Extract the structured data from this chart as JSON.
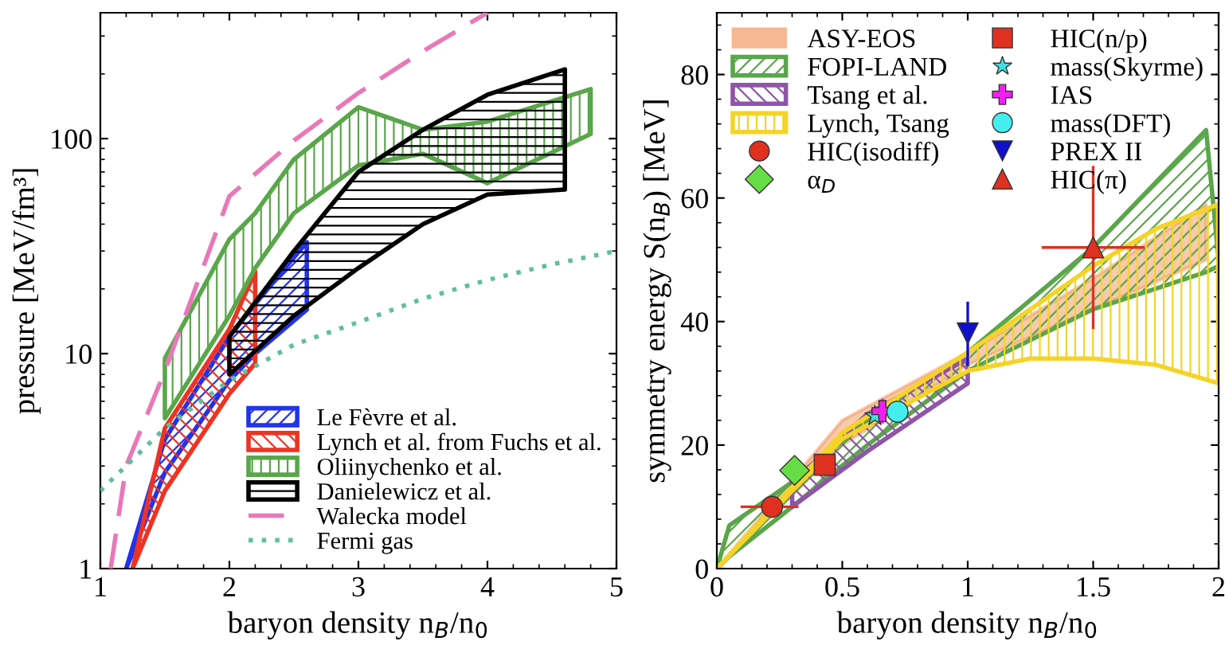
{
  "chart_data": [
    {
      "type": "area",
      "xlabel": "baryon density n$_{B}$/n$_{0}$",
      "ylabel": "pressure [MeV/fm³]",
      "log": "y",
      "xlim": [
        1,
        5
      ],
      "ylim": [
        1,
        385
      ],
      "xticks": [
        1,
        2,
        3,
        4,
        5
      ],
      "yticks": [
        1,
        10,
        100
      ],
      "grid": false,
      "legend": "bottom right",
      "series": [
        {
          "name": "Le Fèvre et al.",
          "color": "#2233ee",
          "x": [
            1.2,
            1.5,
            2,
            2.2,
            2.6
          ],
          "values": [
            null,
            null,
            null,
            null,
            null
          ],
          "upper": [
            1,
            4,
            12,
            17,
            33
          ],
          "lower": [
            1,
            2.8,
            7.5,
            10,
            16
          ]
        },
        {
          "name": "Lynch et al. from Fuchs et al.",
          "color": "#ee3322",
          "x": [
            1.25,
            1.5,
            2,
            2.2
          ],
          "values": [
            null,
            null,
            null,
            null
          ],
          "upper": [
            1,
            4.5,
            13,
            24
          ],
          "lower": [
            1,
            2.3,
            6.5,
            9
          ]
        },
        {
          "name": "Oliinychenko et al.",
          "color": "#5aa64a",
          "x": [
            1.5,
            2,
            2.2,
            2.5,
            3,
            3.5,
            4,
            4.8
          ],
          "values": [
            null,
            null,
            null,
            null,
            null,
            null,
            null,
            null
          ],
          "upper": [
            9.5,
            34,
            45,
            80,
            140,
            110,
            120,
            170
          ],
          "lower": [
            5,
            15,
            25,
            45,
            75,
            85,
            62,
            105
          ]
        },
        {
          "name": "Danielewicz et al.",
          "color": "#000000",
          "x": [
            2,
            2.5,
            3,
            3.5,
            4,
            4.6
          ],
          "values": [
            null,
            null,
            null,
            null,
            null,
            null
          ],
          "upper": [
            12,
            30,
            70,
            110,
            160,
            210
          ],
          "lower": [
            8,
            15,
            25,
            40,
            55,
            58
          ]
        },
        {
          "name": "Walecka model",
          "type": "line",
          "line_style": "dashed",
          "color": "#e878b8",
          "x": [
            1.08,
            1.2,
            1.5,
            2,
            2.5,
            3,
            3.5,
            4
          ],
          "values": [
            1,
            3,
            8.3,
            54,
            98,
            163,
            255,
            385
          ]
        },
        {
          "name": "Fermi gas",
          "type": "line",
          "line_style": "dotted",
          "color": "#5fbfa0",
          "x": [
            1,
            1.5,
            2,
            2.5,
            3,
            3.5,
            4,
            4.5,
            5
          ],
          "values": [
            2.3,
            4.5,
            7.5,
            11,
            14,
            18,
            22,
            26,
            30
          ]
        }
      ]
    },
    {
      "type": "area",
      "xlabel": "baryon density n$_{B}$/n$_{0}$",
      "ylabel": "symmetry energy S(n$_{B}$) [MeV]",
      "xlim": [
        0,
        2
      ],
      "ylim": [
        0,
        90
      ],
      "xticks": [
        0,
        {
          "value": 0.5,
          "label": "0.5"
        },
        1,
        {
          "value": 1.5,
          "label": "1.5"
        },
        2
      ],
      "yticks": [
        0,
        20,
        40,
        60,
        80
      ],
      "grid": false,
      "legend": "top left",
      "series": [
        {
          "name": "ASY-EOS",
          "color": "#f08a4b",
          "x": [
            0,
            0.5,
            1,
            1.5,
            1.95
          ],
          "values": [
            null,
            null,
            null,
            null,
            null
          ],
          "upper": [
            0,
            24,
            35,
            47,
            59
          ],
          "lower": [
            0,
            20,
            33,
            42,
            50
          ]
        },
        {
          "name": "FOPI-LAND",
          "color": "#5aa64a",
          "x": [
            0,
            0.05,
            0.3,
            0.6,
            1,
            1.5,
            1.95,
            2
          ],
          "values": [
            null,
            null,
            null,
            null,
            null,
            null,
            null,
            null
          ],
          "upper": [
            0,
            7,
            14,
            24,
            35,
            52,
            71,
            50
          ],
          "lower": [
            0,
            2,
            10,
            20,
            32,
            42,
            48,
            49
          ]
        },
        {
          "name": "Tsang et al.",
          "color": "#8e55a8",
          "x": [
            0.3,
            0.6,
            1
          ],
          "values": [
            null,
            null,
            null
          ],
          "upper": [
            14,
            25,
            34
          ],
          "lower": [
            10,
            19,
            30
          ]
        },
        {
          "name": "Lynch, Tsang",
          "color": "#f5d327",
          "x": [
            0,
            0.5,
            1,
            1.25,
            1.5,
            1.75,
            2
          ],
          "values": [
            null,
            null,
            null,
            null,
            null,
            null,
            null
          ],
          "upper": [
            0,
            22,
            35,
            42,
            49,
            55,
            59
          ],
          "lower": [
            0,
            21,
            32,
            34,
            34,
            33,
            30
          ]
        },
        {
          "name": "HIC(isodiff)",
          "type": "scatter",
          "marker": "circle",
          "color": "#e03020",
          "x": [
            0.22
          ],
          "values": [
            10
          ],
          "xerrors": [
            [
              0.1,
              0.32
            ]
          ]
        },
        {
          "name": "α$_{D}$",
          "type": "scatter",
          "marker": "diamond",
          "color": "#66dd44",
          "x": [
            0.31
          ],
          "values": [
            15.9
          ]
        },
        {
          "name": "HIC(n/p)",
          "type": "scatter",
          "marker": "square",
          "color": "#e03020",
          "x": [
            0.43
          ],
          "values": [
            16.8
          ]
        },
        {
          "name": "mass(Skyrme)",
          "type": "scatter",
          "marker": "star",
          "color": "#44dddd",
          "x": [
            0.63
          ],
          "values": [
            24.7
          ]
        },
        {
          "name": "IAS",
          "type": "scatter",
          "marker": "cross",
          "color": "#ee22ee",
          "x": [
            0.66
          ],
          "values": [
            25.5
          ],
          "errors": [
            [
              23.7,
              27.3
            ]
          ]
        },
        {
          "name": "mass(DFT)",
          "type": "scatter",
          "marker": "circle",
          "color": "#44eeee",
          "x": [
            0.72
          ],
          "values": [
            25.4
          ]
        },
        {
          "name": "PREX II",
          "type": "scatter",
          "marker": "triangle_down",
          "color": "#1010cc",
          "x": [
            1.0
          ],
          "values": [
            38.1
          ],
          "errors": [
            [
              33,
              43
            ]
          ]
        },
        {
          "name": "HIC(π)",
          "type": "scatter",
          "marker": "triangle",
          "color": "#e03020",
          "x": [
            1.5
          ],
          "values": [
            52
          ],
          "errors": [
            [
              39,
              65
            ]
          ],
          "xerrors": [
            [
              1.3,
              1.7
            ]
          ]
        }
      ]
    }
  ]
}
